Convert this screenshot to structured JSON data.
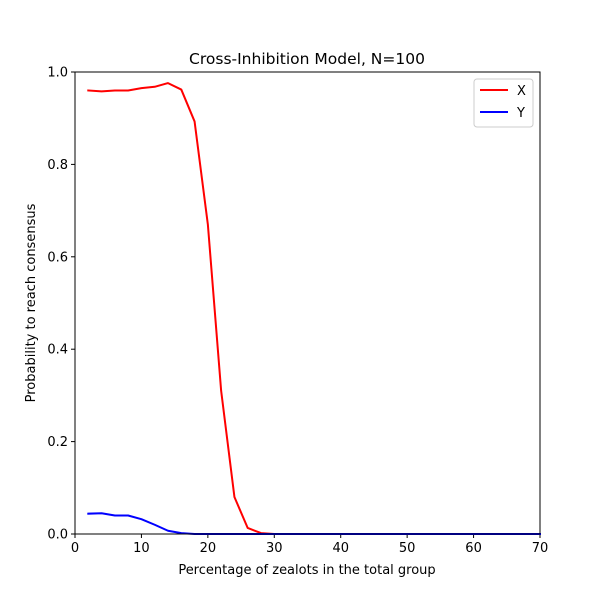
{
  "chart_data": {
    "type": "line",
    "title": "Cross-Inhibition Model, N=100",
    "xlabel": "Percentage of zealots in the total group",
    "ylabel": "Probability to reach consensus",
    "xlim": [
      0,
      70
    ],
    "ylim": [
      0,
      1.0
    ],
    "xticks": [
      0,
      10,
      20,
      30,
      40,
      50,
      60,
      70
    ],
    "xtick_labels": [
      "0",
      "10",
      "20",
      "30",
      "40",
      "50",
      "60",
      "70"
    ],
    "yticks": [
      0.0,
      0.2,
      0.4,
      0.6,
      0.8,
      1.0
    ],
    "ytick_labels": [
      "0.0",
      "0.2",
      "0.4",
      "0.6",
      "0.8",
      "1.0"
    ],
    "grid": false,
    "legend_position": "top-right",
    "x": [
      2,
      4,
      6,
      8,
      10,
      12,
      14,
      16,
      18,
      20,
      22,
      24,
      26,
      28,
      30,
      32,
      34,
      36,
      38,
      40,
      42,
      44,
      46,
      48,
      50,
      52,
      54,
      56,
      58,
      60,
      62,
      64,
      66,
      68,
      70
    ],
    "series": [
      {
        "name": "X",
        "color": "#ff0000",
        "values": [
          0.96,
          0.958,
          0.96,
          0.96,
          0.965,
          0.968,
          0.976,
          0.962,
          0.893,
          0.67,
          0.31,
          0.08,
          0.013,
          0.002,
          0.0,
          0.0,
          0.0,
          0.0,
          0.0,
          0.0,
          0.0,
          0.0,
          0.0,
          0.0,
          0.0,
          0.0,
          0.0,
          0.0,
          0.0,
          0.0,
          0.0,
          0.0,
          0.0,
          0.0,
          0.0
        ]
      },
      {
        "name": "Y",
        "color": "#0000ff",
        "values": [
          0.044,
          0.045,
          0.04,
          0.04,
          0.032,
          0.02,
          0.007,
          0.002,
          0.0,
          0.0,
          0.0,
          0.0,
          0.0,
          0.0,
          0.0,
          0.0,
          0.0,
          0.0,
          0.0,
          0.0,
          0.0,
          0.0,
          0.0,
          0.0,
          0.0,
          0.0,
          0.0,
          0.0,
          0.0,
          0.0,
          0.0,
          0.0,
          0.0,
          0.0,
          0.0
        ]
      }
    ]
  }
}
